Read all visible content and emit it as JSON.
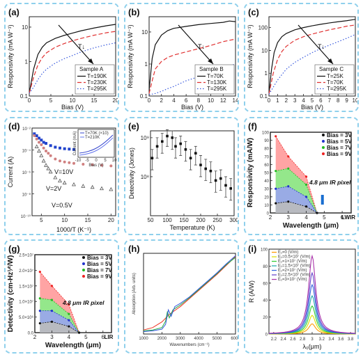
{
  "chart_data": [
    {
      "panel": "(a)",
      "type": "line",
      "xlabel": "Bias (V)",
      "ylabel": "Responsivity (mA W⁻¹)",
      "xlim": [
        0,
        20
      ],
      "ylim": [
        0.1,
        20
      ],
      "yscale": "log",
      "xticks": [
        "0",
        "5",
        "10",
        "15",
        "20"
      ],
      "yticks": [
        "0.1",
        "1",
        "10"
      ],
      "legend_title": "Sample A",
      "legend_position": "bottom-right",
      "annotation": "T↓",
      "series": [
        {
          "name": "T=190K",
          "style": "solid",
          "color": "#111111",
          "x": [
            0,
            1,
            2,
            3,
            4,
            6,
            8,
            10,
            12,
            15,
            18,
            20
          ],
          "values": [
            0.12,
            0.6,
            1.6,
            2.6,
            3.5,
            4.7,
            5.7,
            6.7,
            7.8,
            9.4,
            11,
            12
          ]
        },
        {
          "name": "T=230K",
          "style": "dash",
          "color": "#e03030",
          "x": [
            0,
            1,
            2,
            3,
            4,
            6,
            8,
            10,
            12,
            15,
            18,
            20
          ],
          "values": [
            0.12,
            0.35,
            0.8,
            1.3,
            1.8,
            2.6,
            3.3,
            4,
            4.7,
            5.8,
            6.9,
            7.5
          ]
        },
        {
          "name": "T=295K",
          "style": "dot",
          "color": "#3355dd",
          "x": [
            0,
            1,
            2,
            3,
            4,
            6,
            8,
            10,
            12,
            15,
            18,
            20
          ],
          "values": [
            0.12,
            0.18,
            0.3,
            0.45,
            0.6,
            0.9,
            1.2,
            1.5,
            1.9,
            2.5,
            3.1,
            3.5
          ]
        }
      ]
    },
    {
      "panel": "(b)",
      "type": "line",
      "xlabel": "Bias (V)",
      "ylabel": "Responsivity (mA W⁻¹)",
      "xlim": [
        0,
        14
      ],
      "ylim": [
        0.1,
        30
      ],
      "yscale": "log",
      "xticks": [
        "0",
        "2",
        "4",
        "6",
        "8",
        "10",
        "12",
        "14"
      ],
      "yticks": [
        "0.1",
        "1",
        "10"
      ],
      "legend_title": "Sample B",
      "legend_position": "bottom-right",
      "annotation": "T↓",
      "series": [
        {
          "name": "T=70K",
          "style": "solid",
          "color": "#111111",
          "x": [
            0,
            0.5,
            1,
            2,
            3,
            4,
            6,
            8,
            10,
            12,
            13,
            14
          ],
          "values": [
            0.15,
            1.5,
            4,
            8,
            11,
            13,
            15,
            17,
            18.5,
            20,
            22,
            21
          ]
        },
        {
          "name": "T=130K",
          "style": "dash",
          "color": "#e03030",
          "x": [
            0,
            0.5,
            1,
            2,
            3,
            4,
            6,
            8,
            10,
            12,
            14
          ],
          "values": [
            0.12,
            0.3,
            0.7,
            1.2,
            1.6,
            1.9,
            2.4,
            3,
            3.8,
            5,
            6
          ]
        },
        {
          "name": "T=295K",
          "style": "dot",
          "color": "#3355dd",
          "x": [
            0,
            1,
            2,
            3,
            4,
            6,
            8,
            10,
            12,
            14
          ],
          "values": [
            0.11,
            0.12,
            0.14,
            0.17,
            0.2,
            0.3,
            0.4,
            0.55,
            0.75,
            1
          ]
        }
      ]
    },
    {
      "panel": "(c)",
      "type": "line",
      "xlabel": "Bias (V)",
      "ylabel": "Responsivity (mA W⁻¹)",
      "xlim": [
        0,
        10
      ],
      "ylim": [
        0.1,
        300
      ],
      "yscale": "log",
      "xticks": [
        "0",
        "1",
        "2",
        "3",
        "4",
        "5",
        "6",
        "7",
        "8",
        "9",
        "10"
      ],
      "yticks": [
        "0.1",
        "1",
        "10",
        "100"
      ],
      "legend_title": "Sample C",
      "legend_position": "bottom-right",
      "annotation": "T↓",
      "series": [
        {
          "name": "T=25K",
          "style": "solid",
          "color": "#111111",
          "x": [
            0,
            0.3,
            0.6,
            1,
            1.5,
            2,
            3,
            4,
            5,
            6,
            7,
            8,
            9,
            10
          ],
          "values": [
            0.12,
            1.5,
            8,
            22,
            40,
            55,
            80,
            100,
            120,
            140,
            160,
            180,
            200,
            230
          ]
        },
        {
          "name": "T=70K",
          "style": "dash",
          "color": "#e03030",
          "x": [
            0,
            0.5,
            1,
            1.5,
            2,
            3,
            4,
            5,
            6,
            7,
            8,
            9,
            10
          ],
          "values": [
            0.12,
            1,
            4,
            9,
            15,
            28,
            40,
            52,
            65,
            80,
            95,
            115,
            130
          ]
        },
        {
          "name": "T=295K",
          "style": "dot",
          "color": "#3355dd",
          "x": [
            0,
            1,
            2,
            3,
            4,
            5,
            6,
            7,
            8,
            9,
            10
          ],
          "values": [
            0.12,
            0.5,
            1.5,
            3,
            5,
            8,
            12,
            17,
            24,
            34,
            50
          ]
        }
      ]
    },
    {
      "panel": "(d)",
      "type": "scatter",
      "xlabel": "1000/T (K⁻¹)",
      "ylabel": "Current (A)",
      "xlim": [
        3,
        21
      ],
      "ylim": [
        1e-10,
        0.01
      ],
      "yscale": "log",
      "xticks": [
        "5",
        "10",
        "15",
        "20"
      ],
      "yticks": [
        "10⁻¹⁰",
        "10⁻⁸",
        "10⁻⁶",
        "10⁻⁴",
        "10⁻²"
      ],
      "annotations": [
        "V=10V",
        "V=2V",
        "V=0.5V"
      ],
      "series": [
        {
          "name": "V=10V",
          "color": "#2244cc",
          "x": [
            3.5,
            4,
            4.5,
            5,
            5.5,
            6,
            7,
            8,
            9,
            10,
            11,
            12
          ],
          "values": [
            0.003,
            0.002,
            0.0012,
            0.0008,
            0.0005,
            0.0004,
            0.00025,
            0.00018,
            0.00015,
            0.00013,
            0.00012,
            0.00011
          ]
        },
        {
          "name": "V=2V",
          "color": "#d08080",
          "x": [
            3.5,
            4,
            4.5,
            5,
            5.5,
            6,
            6.5,
            7,
            8,
            9,
            10,
            11,
            12,
            14,
            16,
            18,
            20
          ],
          "values": [
            0.002,
            0.001,
            0.0005,
            0.0003,
            0.00015,
            8e-05,
            5e-05,
            3e-05,
            1.5e-05,
            1e-05,
            8e-06,
            7e-06,
            6e-06,
            5e-06,
            4.5e-06,
            4e-06,
            3.5e-06
          ]
        },
        {
          "name": "V=0.5V",
          "color": "#555555",
          "x": [
            4,
            4.5,
            5,
            5.5,
            6,
            6.5,
            7,
            8,
            9,
            10,
            12,
            14,
            16,
            18,
            20
          ],
          "values": [
            0.0002,
            8e-05,
            3e-05,
            1e-05,
            4e-06,
            2e-06,
            1e-06,
            3e-07,
            1.5e-07,
            1e-07,
            7e-08,
            5e-08,
            4e-08,
            3e-08,
            2.5e-08
          ]
        }
      ],
      "inset": {
        "xlabel": "Bias (V)",
        "ylabel": "Current (mA)",
        "xticks": [
          "-10",
          "-5",
          "0",
          "5",
          "10"
        ],
        "legend": [
          "T=70K (×10)",
          "T=210K"
        ]
      }
    },
    {
      "panel": "(e)",
      "type": "scatter",
      "xlabel": "Temperature (K)",
      "ylabel": "Detectivity (Jones)",
      "xlim": [
        50,
        300
      ],
      "ylim": [
        10000000.0,
        1500000000.0
      ],
      "yscale": "log",
      "xticks": [
        "50",
        "100",
        "150",
        "200",
        "250",
        "300"
      ],
      "yticks": [
        "10⁸",
        "10⁹"
      ],
      "series": [
        {
          "name": "",
          "color": "#111111",
          "x": [
            55,
            70,
            85,
            100,
            115,
            125,
            140,
            155,
            170,
            185,
            200,
            215,
            230,
            245,
            260,
            275,
            290
          ],
          "values": [
            300000000.0,
            600000000.0,
            800000000.0,
            1100000000.0,
            1000000000.0,
            600000000.0,
            700000000.0,
            500000000.0,
            300000000.0,
            400000000.0,
            200000000.0,
            160000000.0,
            140000000.0,
            80000000.0,
            90000000.0,
            60000000.0,
            50000000.0
          ],
          "err_low": [
            150000000.0,
            300000000.0,
            400000000.0,
            600000000.0,
            500000000.0,
            300000000.0,
            350000000.0,
            250000000.0,
            150000000.0,
            200000000.0,
            100000000.0,
            80000000.0,
            70000000.0,
            40000000.0,
            45000000.0,
            30000000.0,
            25000000.0
          ],
          "err_high": [
            500000000.0,
            1000000000.0,
            1300000000.0,
            1600000000.0,
            1500000000.0,
            1000000000.0,
            1100000000.0,
            800000000.0,
            500000000.0,
            600000000.0,
            350000000.0,
            280000000.0,
            240000000.0,
            140000000.0,
            150000000.0,
            100000000.0,
            90000000.0
          ]
        }
      ]
    },
    {
      "panel": "(f)",
      "type": "area",
      "xlabel": "Wavelength (μm)",
      "ylabel": "Responsivity (mA/W)",
      "xlim": [
        2,
        6.5
      ],
      "ylim": [
        0,
        100
      ],
      "xticks": [
        "2",
        "3",
        "4",
        "5",
        "6"
      ],
      "xtick_extra": "LWIR",
      "yticks": [
        "0",
        "10",
        "20",
        "30",
        "40",
        "50",
        "60",
        "70",
        "80",
        "90",
        "100"
      ],
      "annotation": "4.8 μm IR pixel",
      "legend_position": "top-right",
      "series": [
        {
          "name": "Bias = 3V",
          "color": "#111111",
          "x": [
            2.3,
            3,
            4,
            4.6
          ],
          "values": [
            12,
            14,
            8,
            0
          ]
        },
        {
          "name": "Bias = 5V",
          "color": "#2233cc",
          "x": [
            2.3,
            3,
            4,
            4.6
          ],
          "values": [
            30,
            33,
            20,
            0
          ]
        },
        {
          "name": "Bias = 7V",
          "color": "#22bb22",
          "x": [
            2.3,
            3,
            4,
            4.6
          ],
          "values": [
            52,
            55,
            35,
            0
          ]
        },
        {
          "name": "Bias = 9V",
          "color": "#ee2222",
          "x": [
            2.3,
            3,
            4,
            4.6
          ],
          "values": [
            95,
            70,
            45,
            0
          ]
        }
      ]
    },
    {
      "panel": "(g)",
      "type": "area",
      "xlabel": "Wavelength (μm)",
      "ylabel": "Detectivity (cm-Hz¹⁄²/W)",
      "xlim": [
        2,
        6.5
      ],
      "ylim": [
        0,
        25000000.0
      ],
      "xticks": [
        "2",
        "3",
        "4",
        "5",
        "6"
      ],
      "xtick_extra": "LIR",
      "yticks": [
        "0.0",
        "5.0×10⁶",
        "1.0×10⁷",
        "1.5×10⁷",
        "2.0×10⁷",
        "2.5×10⁷"
      ],
      "annotation": "4.8 μm IR pixel",
      "legend_position": "top-right",
      "series": [
        {
          "name": "Bias = 3V",
          "color": "#111111",
          "x": [
            2.3,
            3,
            4,
            4.6
          ],
          "values": [
            3000000.0,
            3500000.0,
            2000000.0,
            0
          ]
        },
        {
          "name": "Bias = 5V",
          "color": "#2233cc",
          "x": [
            2.3,
            3,
            4,
            4.6
          ],
          "values": [
            7000000.0,
            7000000.0,
            4000000.0,
            0
          ]
        },
        {
          "name": "Bias = 7V",
          "color": "#22bb22",
          "x": [
            2.3,
            3,
            4,
            4.6
          ],
          "values": [
            11000000.0,
            10500000.0,
            6000000.0,
            0
          ]
        },
        {
          "name": "Bias = 9V",
          "color": "#ee2222",
          "x": [
            2.3,
            3,
            4,
            4.6
          ],
          "values": [
            19500000.0,
            15000000.0,
            9000000.0,
            0
          ]
        }
      ]
    },
    {
      "panel": "(h)",
      "type": "line",
      "xlabel": "Wavenumbers (cm⁻¹)",
      "ylabel": "Absorption (Arb. units)",
      "xlim": [
        1000,
        6000
      ],
      "xticks": [
        "1000",
        "2000",
        "3000",
        "4000",
        "5000",
        "6000"
      ],
      "series": [
        {
          "name": "",
          "color": "#ee3322",
          "x": [
            1000,
            1500,
            2000,
            2300,
            2500,
            3000,
            3500,
            4000,
            4500,
            5000,
            5500,
            6000
          ],
          "values": [
            0.05,
            0.08,
            0.15,
            0.22,
            0.26,
            0.34,
            0.44,
            0.54,
            0.64,
            0.74,
            0.85,
            0.96
          ]
        },
        {
          "name": "",
          "color": "#22aa44",
          "x": [
            1000,
            1500,
            2000,
            2200,
            2300,
            2400,
            2600,
            3000,
            3500,
            4000,
            4500,
            5000,
            5500,
            6000
          ],
          "values": [
            0.04,
            0.05,
            0.08,
            0.16,
            0.28,
            0.2,
            0.3,
            0.36,
            0.45,
            0.55,
            0.65,
            0.75,
            0.86,
            0.95
          ]
        },
        {
          "name": "",
          "color": "#3355dd",
          "x": [
            1000,
            1500,
            2000,
            2200,
            2350,
            2500,
            2700,
            3000,
            3500,
            4000,
            4500,
            5000,
            5500,
            6000
          ],
          "values": [
            0.03,
            0.04,
            0.06,
            0.12,
            0.3,
            0.22,
            0.34,
            0.38,
            0.46,
            0.56,
            0.66,
            0.76,
            0.87,
            0.97
          ]
        }
      ]
    },
    {
      "panel": "(i)",
      "type": "line",
      "xlabel": "λ₀(μm)",
      "ylabel": "R (A/W)",
      "xlim": [
        2.1,
        3.9
      ],
      "ylim": [
        0,
        100
      ],
      "xticks": [
        "2.2",
        "2.4",
        "2.6",
        "2.8",
        "3",
        "3.2",
        "3.4",
        "3.6",
        "3.8"
      ],
      "yticks": [
        "0",
        "20",
        "40",
        "60",
        "80",
        "100"
      ],
      "legend_position": "top-left",
      "series": [
        {
          "name": "E₁=0 (V/m)",
          "color": "#ff9900",
          "peak": 12,
          "center": 3.0
        },
        {
          "name": "E₁=0.5×10⁷ (V/m)",
          "color": "#dddd00",
          "peak": 22,
          "center": 3.0
        },
        {
          "name": "E₁=1×10⁷ (V/m)",
          "color": "#33cc33",
          "peak": 33,
          "center": 3.0
        },
        {
          "name": "E₁=1.5×10⁷ (V/m)",
          "color": "#22aaaa",
          "peak": 45,
          "center": 3.0
        },
        {
          "name": "E₁=2×10⁷ (V/m)",
          "color": "#3366dd",
          "peak": 58,
          "center": 3.0
        },
        {
          "name": "E₁=2.5×10⁷ (V/m)",
          "color": "#6644cc",
          "peak": 72,
          "center": 3.0
        },
        {
          "name": "E₁=3×10⁷ (V/m)",
          "color": "#aa33aa",
          "peak": 92,
          "center": 3.0
        }
      ]
    }
  ]
}
